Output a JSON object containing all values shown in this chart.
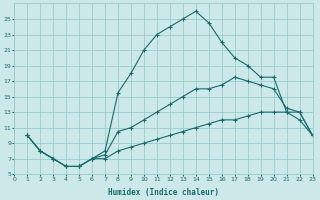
{
  "xlabel": "Humidex (Indice chaleur)",
  "bg_color": "#cce8e8",
  "grid_color": "#99cccc",
  "line_color": "#1a6b6b",
  "lines": [
    {
      "x": [
        1,
        2,
        3,
        4,
        5,
        6,
        7,
        8,
        9,
        10,
        11,
        12,
        13,
        14,
        15,
        16,
        17,
        18,
        19,
        20,
        21,
        22,
        23
      ],
      "y": [
        10,
        8,
        7,
        6,
        6,
        7,
        7,
        8,
        8.5,
        9,
        9.5,
        10,
        10.5,
        11,
        11.5,
        12,
        12,
        12.5,
        13,
        13,
        13,
        12,
        10
      ]
    },
    {
      "x": [
        1,
        2,
        3,
        4,
        5,
        6,
        7,
        8,
        9,
        10,
        11,
        12,
        13,
        14,
        15,
        16,
        17,
        18,
        19,
        20,
        21,
        22,
        23
      ],
      "y": [
        10,
        8,
        7,
        6,
        6,
        7,
        7.5,
        10.5,
        11,
        12,
        13,
        14,
        15,
        16,
        16,
        16.5,
        17.5,
        17,
        16.5,
        16,
        13.5,
        13,
        10
      ]
    },
    {
      "x": [
        1,
        2,
        3,
        4,
        5,
        6,
        7,
        8,
        9,
        10,
        11,
        12,
        13,
        14,
        15,
        16,
        17,
        18,
        19,
        20,
        21,
        22,
        23
      ],
      "y": [
        10,
        8,
        7,
        6,
        6,
        7,
        8,
        15.5,
        18,
        21,
        23,
        24,
        25,
        26,
        24.5,
        22,
        20,
        19,
        17.5,
        17.5,
        13,
        13,
        10
      ]
    }
  ],
  "xlim": [
    0,
    23
  ],
  "ylim": [
    5,
    27
  ],
  "yticks": [
    5,
    7,
    9,
    11,
    13,
    15,
    17,
    19,
    21,
    23,
    25
  ],
  "xticks": [
    0,
    1,
    2,
    3,
    4,
    5,
    6,
    7,
    8,
    9,
    10,
    11,
    12,
    13,
    14,
    15,
    16,
    17,
    18,
    19,
    20,
    21,
    22,
    23
  ],
  "figwidth": 3.2,
  "figheight": 2.0,
  "dpi": 100
}
